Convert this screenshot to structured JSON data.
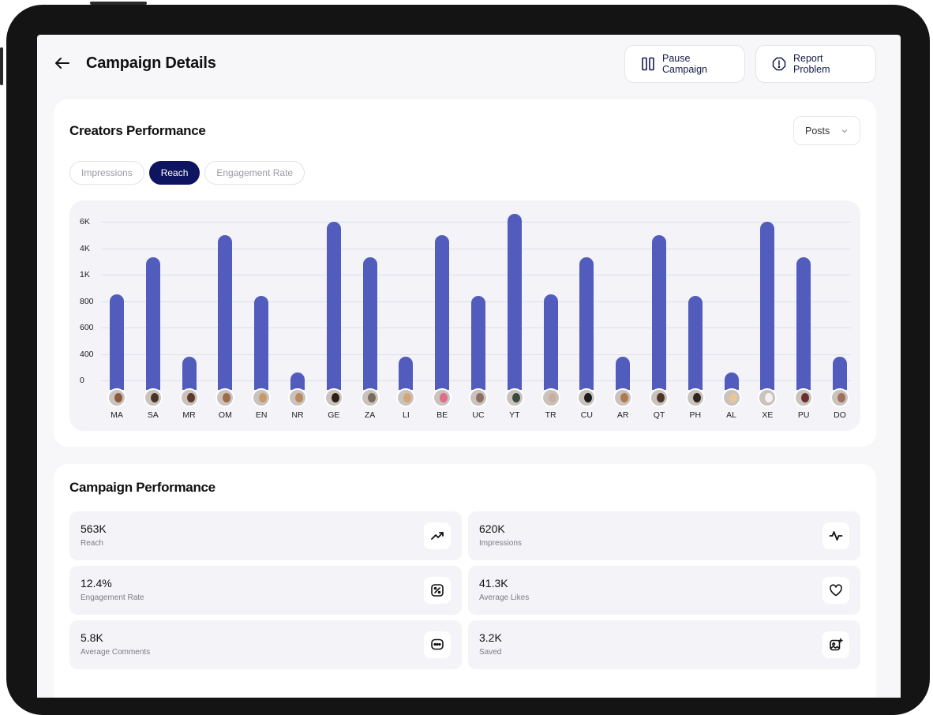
{
  "header": {
    "title": "Campaign Details",
    "pause_label": "Pause Campaign",
    "report_label": "Report Problem"
  },
  "creators": {
    "title": "Creators Performance",
    "dropdown_value": "Posts",
    "tabs": [
      {
        "label": "Impressions",
        "active": false
      },
      {
        "label": "Reach",
        "active": true
      },
      {
        "label": "Engagement Rate",
        "active": false
      }
    ]
  },
  "chart_data": {
    "type": "bar",
    "title": "",
    "xlabel": "",
    "ylabel": "",
    "y_tick_labels": [
      "0",
      "400",
      "600",
      "800",
      "1K",
      "4K",
      "6K"
    ],
    "grid": true,
    "bar_color": "#515cbc",
    "categories": [
      "MA",
      "SA",
      "MR",
      "OM",
      "EN",
      "NR",
      "GE",
      "ZA",
      "LI",
      "BE",
      "UC",
      "YT",
      "TR",
      "CU",
      "AR",
      "QT",
      "PH",
      "AL",
      "XE",
      "PU",
      "DO"
    ],
    "values": [
      850,
      3000,
      360,
      5000,
      840,
      120,
      6000,
      3000,
      360,
      5000,
      840,
      6600,
      850,
      3000,
      360,
      5000,
      840,
      120,
      6000,
      3000,
      360
    ]
  },
  "campaign": {
    "title": "Campaign Performance",
    "metrics": [
      {
        "value": "563K",
        "label": "Reach",
        "icon": "trending-up-icon"
      },
      {
        "value": "620K",
        "label": "Impressions",
        "icon": "activity-icon"
      },
      {
        "value": "12.4%",
        "label": "Engagement Rate",
        "icon": "percent-icon"
      },
      {
        "value": "41.3K",
        "label": "Average Likes",
        "icon": "heart-icon"
      },
      {
        "value": "5.8K",
        "label": "Average Comments",
        "icon": "comment-icon"
      },
      {
        "value": "3.2K",
        "label": "Saved",
        "icon": "save-image-icon"
      }
    ]
  },
  "colors": {
    "accent": "#0f1460",
    "bar": "#515cbc",
    "background": "#f7f7f9"
  }
}
